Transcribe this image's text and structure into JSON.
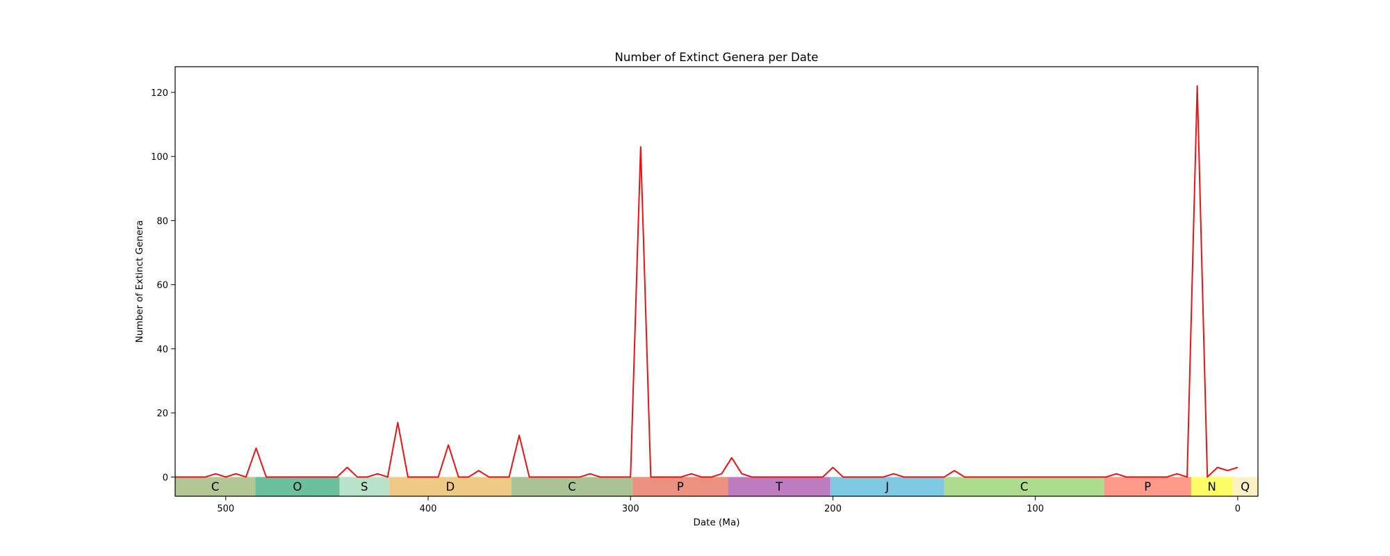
{
  "chart_data": {
    "type": "line",
    "title": "Number of Extinct Genera per Date",
    "xlabel": "Date (Ma)",
    "ylabel": "Number of Extinct Genera",
    "x_direction": "reversed",
    "xlim": [
      525,
      -10
    ],
    "ylim": [
      -6,
      128
    ],
    "xticks": [
      500,
      400,
      300,
      200,
      100,
      0
    ],
    "yticks": [
      0,
      20,
      40,
      60,
      80,
      100,
      120
    ],
    "grid": false,
    "line_color": "#ee1111",
    "series": [
      {
        "x": [
          525,
          520,
          515,
          510,
          505,
          500,
          495,
          490,
          485,
          480,
          475,
          470,
          465,
          460,
          455,
          450,
          445,
          440,
          435,
          430,
          425,
          420,
          415,
          410,
          405,
          400,
          395,
          390,
          385,
          380,
          375,
          370,
          365,
          360,
          355,
          350,
          345,
          340,
          335,
          330,
          325,
          320,
          315,
          310,
          305,
          300,
          295,
          290,
          285,
          280,
          275,
          270,
          265,
          260,
          255,
          250,
          245,
          240,
          235,
          230,
          225,
          220,
          215,
          210,
          205,
          200,
          195,
          190,
          185,
          180,
          175,
          170,
          165,
          160,
          155,
          150,
          145,
          140,
          135,
          130,
          125,
          120,
          115,
          110,
          105,
          100,
          95,
          90,
          85,
          80,
          75,
          70,
          65,
          60,
          55,
          50,
          45,
          40,
          35,
          30,
          25,
          20,
          15,
          10,
          5,
          0
        ],
        "values": [
          0,
          0,
          0,
          0,
          1,
          0,
          1,
          0,
          9,
          0,
          0,
          0,
          0,
          0,
          0,
          0,
          0,
          3,
          0,
          0,
          1,
          0,
          17,
          0,
          0,
          0,
          0,
          10,
          0,
          0,
          2,
          0,
          0,
          0,
          13,
          0,
          0,
          0,
          0,
          0,
          0,
          1,
          0,
          0,
          0,
          0,
          103,
          0,
          0,
          0,
          0,
          1,
          0,
          0,
          1,
          6,
          1,
          0,
          0,
          0,
          0,
          0,
          0,
          0,
          0,
          3,
          0,
          0,
          0,
          0,
          0,
          1,
          0,
          0,
          0,
          0,
          0,
          2,
          0,
          0,
          0,
          0,
          0,
          0,
          0,
          0,
          0,
          0,
          0,
          0,
          0,
          0,
          0,
          1,
          0,
          0,
          0,
          0,
          0,
          1,
          0,
          122,
          0,
          3,
          2,
          3
        ]
      }
    ],
    "periods": [
      {
        "label": "C",
        "start": 538.8,
        "end": 485.4,
        "color": "#b2c795"
      },
      {
        "label": "O",
        "start": 485.4,
        "end": 443.8,
        "color": "#6cbf9f"
      },
      {
        "label": "S",
        "start": 443.8,
        "end": 419.2,
        "color": "#b8e2c9"
      },
      {
        "label": "D",
        "start": 419.2,
        "end": 358.9,
        "color": "#efca86"
      },
      {
        "label": "C",
        "start": 358.9,
        "end": 298.9,
        "color": "#a9c394"
      },
      {
        "label": "P",
        "start": 298.9,
        "end": 251.9,
        "color": "#ec917f"
      },
      {
        "label": "T",
        "start": 251.9,
        "end": 201.3,
        "color": "#be7cc1"
      },
      {
        "label": "J",
        "start": 201.3,
        "end": 145.0,
        "color": "#7ec8e1"
      },
      {
        "label": "C",
        "start": 145.0,
        "end": 66.0,
        "color": "#addc8e"
      },
      {
        "label": "P",
        "start": 66.0,
        "end": 23.0,
        "color": "#fd9a8a"
      },
      {
        "label": "N",
        "start": 23.0,
        "end": 2.58,
        "color": "#fefd66"
      },
      {
        "label": "Q",
        "start": 2.58,
        "end": -10,
        "color": "#fef2c4"
      }
    ]
  }
}
